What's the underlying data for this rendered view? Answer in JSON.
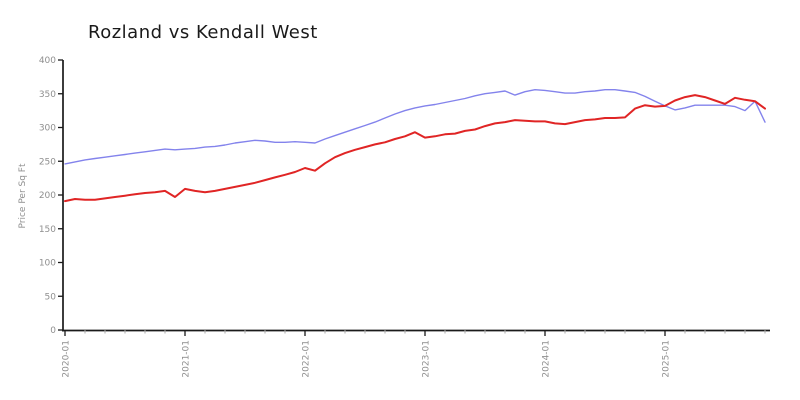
{
  "title": "Rozland vs Kendall West",
  "chart_data": {
    "type": "line",
    "title": "Rozland vs Kendall West",
    "xlabel": "",
    "ylabel": "Price Per Sq Ft",
    "ylim": [
      0,
      400
    ],
    "y_ticks": [
      0,
      50,
      100,
      150,
      200,
      250,
      300,
      350,
      400
    ],
    "x_start": "2020-01",
    "x_frequency": "monthly",
    "x_tick_labels": [
      "2020-01",
      "2021-01",
      "2022-01",
      "2023-01",
      "2024-01",
      "2025-01"
    ],
    "x_major_tick_every_months": 12,
    "x_minor_tick_every_months": 2,
    "grid": false,
    "legend": "none",
    "series": [
      {
        "name": "Rozland",
        "color": "#8383ec",
        "line_width": 1.4,
        "values": [
          246,
          249,
          252,
          254,
          256,
          258,
          260,
          262,
          264,
          266,
          268,
          267,
          268,
          269,
          271,
          272,
          274,
          277,
          279,
          281,
          280,
          278,
          278,
          279,
          278,
          277,
          283,
          288,
          293,
          298,
          303,
          308,
          314,
          320,
          325,
          329,
          332,
          334,
          337,
          340,
          343,
          347,
          350,
          352,
          354,
          348,
          353,
          356,
          355,
          353,
          351,
          351,
          353,
          354,
          356,
          356,
          354,
          352,
          346,
          339,
          332,
          326,
          329,
          333,
          333,
          333,
          333,
          331,
          325,
          339,
          308
        ]
      },
      {
        "name": "Kendall West",
        "color": "#e02525",
        "line_width": 2,
        "values": [
          191,
          194,
          193,
          193,
          195,
          197,
          199,
          201,
          203,
          204,
          206,
          197,
          209,
          206,
          204,
          206,
          209,
          212,
          215,
          218,
          222,
          226,
          230,
          234,
          240,
          236,
          247,
          256,
          262,
          267,
          271,
          275,
          278,
          283,
          287,
          293,
          285,
          287,
          290,
          291,
          295,
          297,
          302,
          306,
          308,
          311,
          310,
          309,
          309,
          306,
          305,
          308,
          311,
          312,
          314,
          314,
          315,
          328,
          333,
          331,
          332,
          340,
          345,
          348,
          345,
          340,
          335,
          344,
          341,
          339,
          328
        ]
      }
    ]
  },
  "colors": {
    "axis": "#1a1a1a",
    "tick_label": "#8f8f8f",
    "minor_tick": "#aaaaaa",
    "background": "#ffffff"
  }
}
